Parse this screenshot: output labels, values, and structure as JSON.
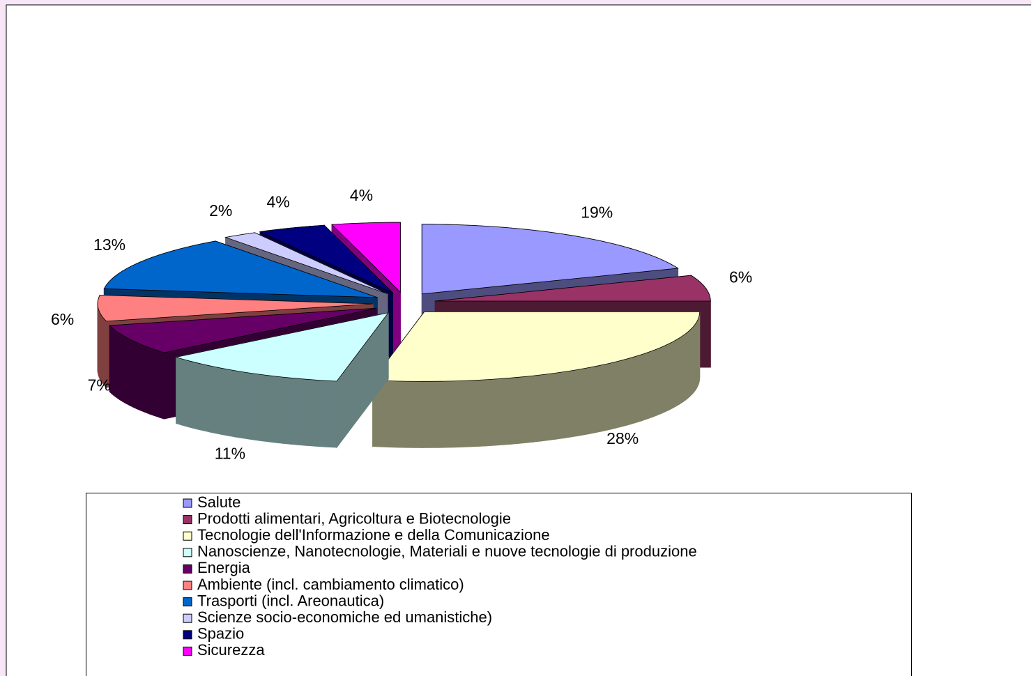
{
  "chart_data": {
    "type": "pie",
    "categories": [
      "Salute",
      "Prodotti alimentari, Agricoltura e Biotecnologie",
      "Tecnologie dell'Informazione e della Comunicazione",
      "Nanoscienze, Nanotecnologie, Materiali e nuove tecnologie di produzione",
      "Energia",
      "Ambiente (incl. cambiamento climatico)",
      "Trasporti (incl. Areonautica)",
      "Scienze socio-economiche ed umanistiche)",
      "Spazio",
      "Sicurezza"
    ],
    "values": [
      19,
      6,
      28,
      11,
      7,
      6,
      13,
      2,
      4,
      4
    ],
    "value_labels": [
      "19%",
      "6%",
      "28%",
      "11%",
      "7%",
      "6%",
      "13%",
      "2%",
      "4%",
      "4%"
    ],
    "colors": [
      "#9999ff",
      "#993366",
      "#ffffcc",
      "#ccffff",
      "#660066",
      "#ff8080",
      "#0066cc",
      "#ccccff",
      "#000080",
      "#ff00ff"
    ],
    "legend": "bottom"
  }
}
